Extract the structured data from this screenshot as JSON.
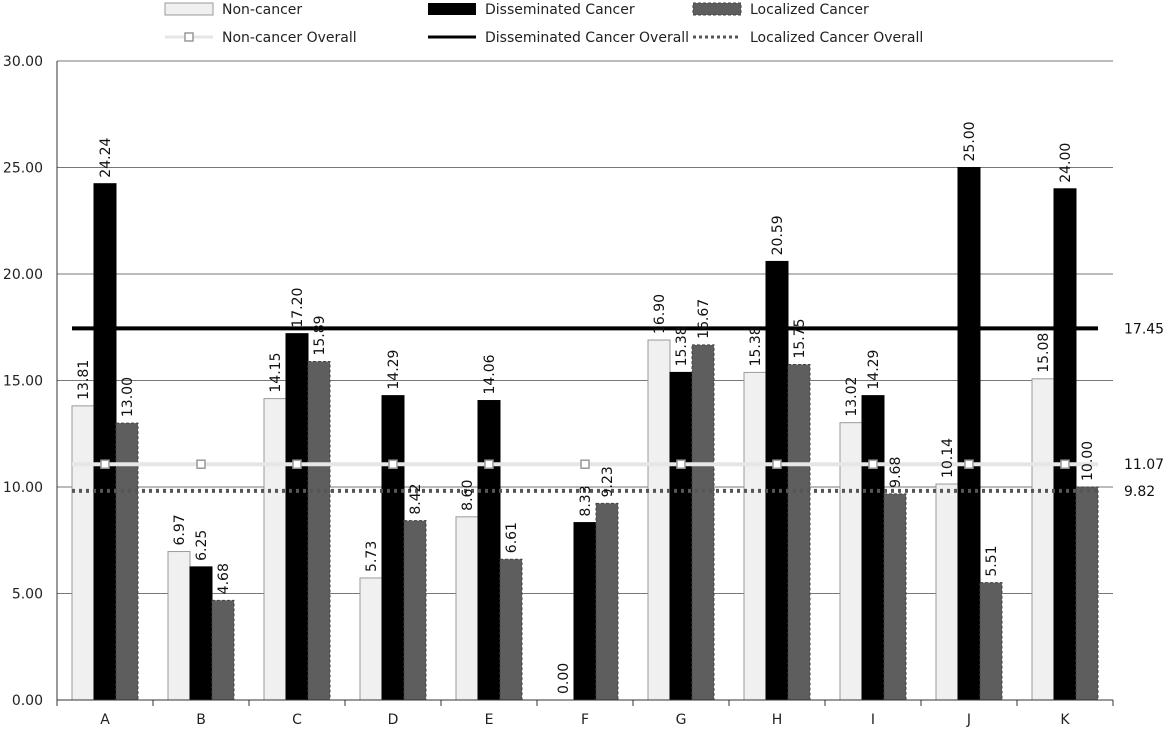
{
  "chart_data": {
    "type": "bar",
    "categories": [
      "A",
      "B",
      "C",
      "D",
      "E",
      "F",
      "G",
      "H",
      "I",
      "J",
      "K"
    ],
    "series": [
      {
        "name": "Non-cancer",
        "color": "#f0f0f0",
        "stroke": "#9a9a9a",
        "values": [
          13.81,
          6.97,
          14.15,
          5.73,
          8.6,
          0.0,
          16.9,
          15.38,
          13.02,
          10.14,
          15.08
        ],
        "labels": [
          "13.81",
          "6.97",
          "14.15",
          "5.73",
          "8.60",
          "0.00",
          "16.90",
          "15.38",
          "13.02",
          "10.14",
          "15.08"
        ]
      },
      {
        "name": "Disseminated Cancer",
        "color": "#000000",
        "stroke": "#000000",
        "values": [
          24.24,
          6.25,
          17.2,
          14.29,
          14.06,
          8.33,
          15.38,
          20.59,
          14.29,
          25.0,
          24.0
        ],
        "labels": [
          "24.24",
          "6.25",
          "17.20",
          "14.29",
          "14.06",
          "8.33",
          "15.38",
          "20.59",
          "14.29",
          "25.00",
          "24.00"
        ]
      },
      {
        "name": "Localized Cancer",
        "color": "#5e5e5e",
        "stroke": "#444444",
        "values": [
          13.0,
          4.68,
          15.89,
          8.42,
          6.61,
          9.23,
          16.67,
          15.75,
          9.68,
          5.51,
          10.0
        ],
        "labels": [
          "13.00",
          "4.68",
          "15.89",
          "8.42",
          "6.61",
          "9.23",
          "16.67",
          "15.75",
          "9.68",
          "5.51",
          "10.00"
        ]
      }
    ],
    "reference_lines": [
      {
        "name": "Non-cancer Overall",
        "value": 11.07,
        "label": "11.07",
        "color": "#e6e6e6",
        "style": "solid-with-square-markers"
      },
      {
        "name": "Disseminated Cancer Overall",
        "value": 17.45,
        "label": "17.45",
        "color": "#000000",
        "style": "solid-thick"
      },
      {
        "name": "Localized Cancer Overall",
        "value": 9.82,
        "label": "9.82",
        "color": "#555555",
        "style": "dotted"
      }
    ],
    "yticks": [
      "0.00",
      "5.00",
      "10.00",
      "15.00",
      "20.00",
      "25.00",
      "30.00"
    ],
    "ylim": [
      0,
      30
    ],
    "grid": true,
    "legend_position": "top"
  }
}
